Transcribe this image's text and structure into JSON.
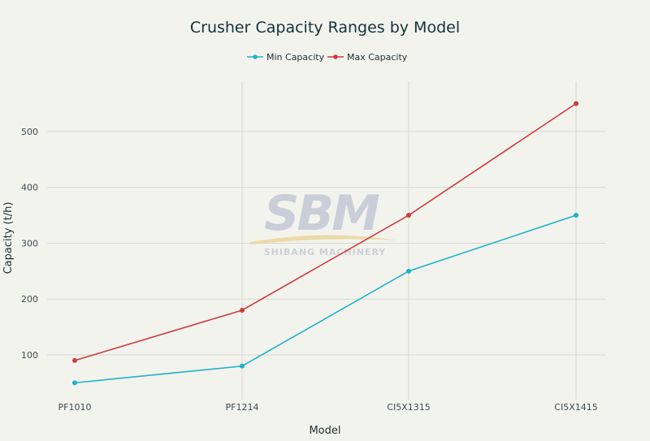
{
  "chart_data": {
    "type": "line",
    "title": "Crusher Capacity Ranges by Model",
    "xlabel": "Model",
    "ylabel": "Capacity (t/h)",
    "categories": [
      "PF1010",
      "PF1214",
      "CI5X1315",
      "CI5X1415"
    ],
    "series": [
      {
        "name": "Min Capacity",
        "color": "#1fb3c8",
        "values": [
          50,
          80,
          250,
          350
        ]
      },
      {
        "name": "Max Capacity",
        "color": "#cc3d3d",
        "values": [
          90,
          180,
          350,
          550
        ]
      }
    ],
    "yticks": [
      100,
      200,
      300,
      400,
      500
    ],
    "ylim": [
      20,
      590
    ],
    "grid": true,
    "legend_position": "top-center"
  },
  "watermark": {
    "logo_text": "SBM",
    "subtitle": "SHIBANG MACHINERY"
  }
}
